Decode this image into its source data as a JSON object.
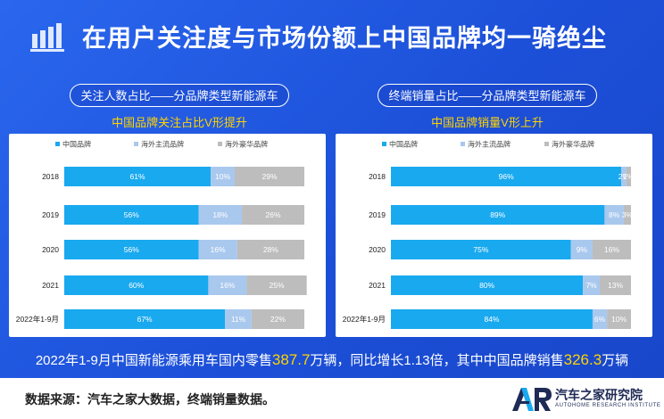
{
  "title": "在用户关注度与市场份额上中国品牌均一骑绝尘",
  "colors": {
    "chinese": "#19a9ef",
    "mainstream": "#a9c8ee",
    "luxury": "#bdbdbd",
    "highlight": "#ffd400"
  },
  "chart_data": [
    {
      "type": "bar",
      "stacked": true,
      "orientation": "horizontal",
      "title": "关注人数占比——分品牌类型新能源车",
      "subtitle": "中国品牌关注占比V形提升",
      "categories": [
        "2018",
        "2019",
        "2020",
        "2021",
        "2022年1-9月"
      ],
      "legend": [
        "中国品牌",
        "海外主流品牌",
        "海外豪华品牌"
      ],
      "series": [
        {
          "name": "中国品牌",
          "values": [
            61,
            56,
            56,
            60,
            67
          ],
          "labels": [
            "61%",
            "56%",
            "56%",
            "60%",
            "67%"
          ]
        },
        {
          "name": "海外主流品牌",
          "values": [
            10,
            18,
            16,
            16,
            11
          ],
          "labels": [
            "10%",
            "18%",
            "16%",
            "16%",
            "11%"
          ]
        },
        {
          "name": "海外豪华品牌",
          "values": [
            29,
            26,
            28,
            25,
            22
          ],
          "labels": [
            "29%",
            "26%",
            "28%",
            "25%",
            "22%"
          ]
        }
      ],
      "xlim": [
        0,
        100
      ]
    },
    {
      "type": "bar",
      "stacked": true,
      "orientation": "horizontal",
      "title": "终端销量占比——分品牌类型新能源车",
      "subtitle": "中国品牌销量V形上升",
      "categories": [
        "2018",
        "2019",
        "2020",
        "2021",
        "2022年1-9月"
      ],
      "legend": [
        "中国品牌",
        "海外主流品牌",
        "海外豪华品牌"
      ],
      "series": [
        {
          "name": "中国品牌",
          "values": [
            96,
            89,
            75,
            80,
            84
          ],
          "labels": [
            "96%",
            "89%",
            "75%",
            "80%",
            "84%"
          ]
        },
        {
          "name": "海外主流品牌",
          "values": [
            2,
            8,
            9,
            7,
            6
          ],
          "labels": [
            "2%",
            "8%",
            "9%",
            "7%",
            "6%"
          ]
        },
        {
          "name": "海外豪华品牌",
          "values": [
            2,
            3,
            16,
            13,
            10
          ],
          "labels": [
            "2%",
            "3%",
            "16%",
            "13%",
            "10%"
          ]
        }
      ],
      "xlim": [
        0,
        100
      ]
    }
  ],
  "summary": {
    "prefix": "2022年1-9月中国新能源乘用车国内零售",
    "retail_value": "387.7",
    "middle": "万辆，同比增长1.13倍，其中中国品牌销售",
    "china_value": "326.3",
    "suffix": "万辆"
  },
  "footer": {
    "source": "数据来源：汽车之家大数据，终端销量数据。",
    "logo_name": "汽车之家研究院",
    "logo_sub": "AUTOHOME RESEARCH INSTITUTE"
  }
}
